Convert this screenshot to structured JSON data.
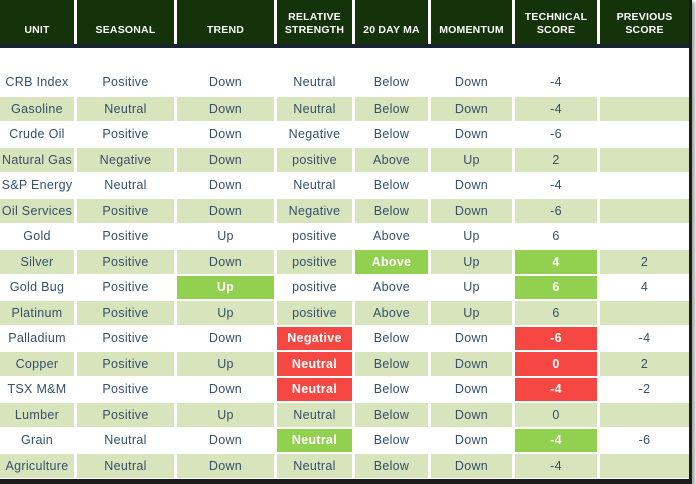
{
  "theme": {
    "header_bg": "#14330a",
    "header_text": "#ffffff",
    "row_bg": "#ffffff",
    "row_alt_bg": "#d8e4bc",
    "body_text": "#34506a",
    "highlight_green": "#92d050",
    "highlight_red": "#f74743",
    "divider": "#1a2330"
  },
  "chart_data": {
    "type": "table",
    "title": "Commodity technical score table",
    "columns": [
      "UNIT",
      "SEASONAL",
      "TREND",
      "RELATIVE STRENGTH",
      "20 DAY MA",
      "MOMENTUM",
      "TECHNICAL SCORE",
      "PREVIOUS SCORE"
    ],
    "rows": [
      [
        "CRB Index",
        "Positive",
        "Down",
        "Neutral",
        "Below",
        "Down",
        -4,
        ""
      ],
      [
        "Gasoline",
        "Neutral",
        "Down",
        "Neutral",
        "Below",
        "Down",
        -4,
        ""
      ],
      [
        "Crude Oil",
        "Positive",
        "Down",
        "Negative",
        "Below",
        "Down",
        -6,
        ""
      ],
      [
        "Natural Gas",
        "Negative",
        "Down",
        "positive",
        "Above",
        "Up",
        2,
        ""
      ],
      [
        "S&P Energy",
        "Neutral",
        "Down",
        "Neutral",
        "Below",
        "Down",
        -4,
        ""
      ],
      [
        "Oil Services",
        "Positive",
        "Down",
        "Negative",
        "Below",
        "Down",
        -6,
        ""
      ],
      [
        "Gold",
        "Positive",
        "Up",
        "positive",
        "Above",
        "Up",
        6,
        ""
      ],
      [
        "Silver",
        "Positive",
        "Down",
        "positive",
        "Above",
        "Up",
        4,
        2
      ],
      [
        "Gold Bug",
        "Positive",
        "Up",
        "positive",
        "Above",
        "Up",
        6,
        4
      ],
      [
        "Platinum",
        "Positive",
        "Up",
        "positive",
        "Above",
        "Up",
        6,
        ""
      ],
      [
        "Palladium",
        "Positive",
        "Down",
        "Negative",
        "Below",
        "Down",
        -6,
        -4
      ],
      [
        "Copper",
        "Positive",
        "Up",
        "Neutral",
        "Below",
        "Down",
        0,
        2
      ],
      [
        "TSX M&M",
        "Positive",
        "Down",
        "Neutral",
        "Below",
        "Down",
        -4,
        -2
      ],
      [
        "Lumber",
        "Positive",
        "Up",
        "Neutral",
        "Below",
        "Down",
        0,
        ""
      ],
      [
        "Grain",
        "Neutral",
        "Down",
        "Neutral",
        "Below",
        "Down",
        -4,
        -6
      ],
      [
        "Agriculture",
        "Neutral",
        "Down",
        "Neutral",
        "Below",
        "Down",
        -4,
        ""
      ]
    ]
  },
  "highlights": [
    {
      "row": 7,
      "col": 4,
      "color": "green"
    },
    {
      "row": 7,
      "col": 6,
      "color": "green"
    },
    {
      "row": 8,
      "col": 2,
      "color": "green"
    },
    {
      "row": 8,
      "col": 6,
      "color": "green"
    },
    {
      "row": 10,
      "col": 3,
      "color": "red"
    },
    {
      "row": 10,
      "col": 6,
      "color": "red"
    },
    {
      "row": 11,
      "col": 3,
      "color": "red"
    },
    {
      "row": 11,
      "col": 6,
      "color": "red"
    },
    {
      "row": 12,
      "col": 3,
      "color": "red"
    },
    {
      "row": 12,
      "col": 6,
      "color": "red"
    },
    {
      "row": 14,
      "col": 3,
      "color": "green"
    },
    {
      "row": 14,
      "col": 6,
      "color": "green"
    }
  ]
}
